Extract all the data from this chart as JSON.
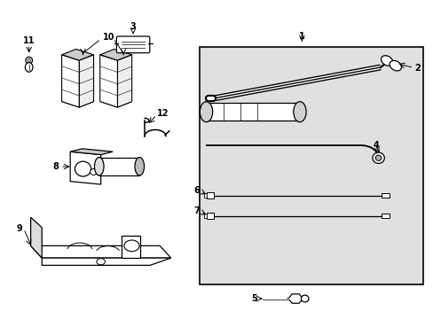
{
  "background_color": "#ffffff",
  "box_color": "#e0e0e0",
  "line_color": "#000000",
  "fig_width": 4.89,
  "fig_height": 3.6,
  "dpi": 100
}
